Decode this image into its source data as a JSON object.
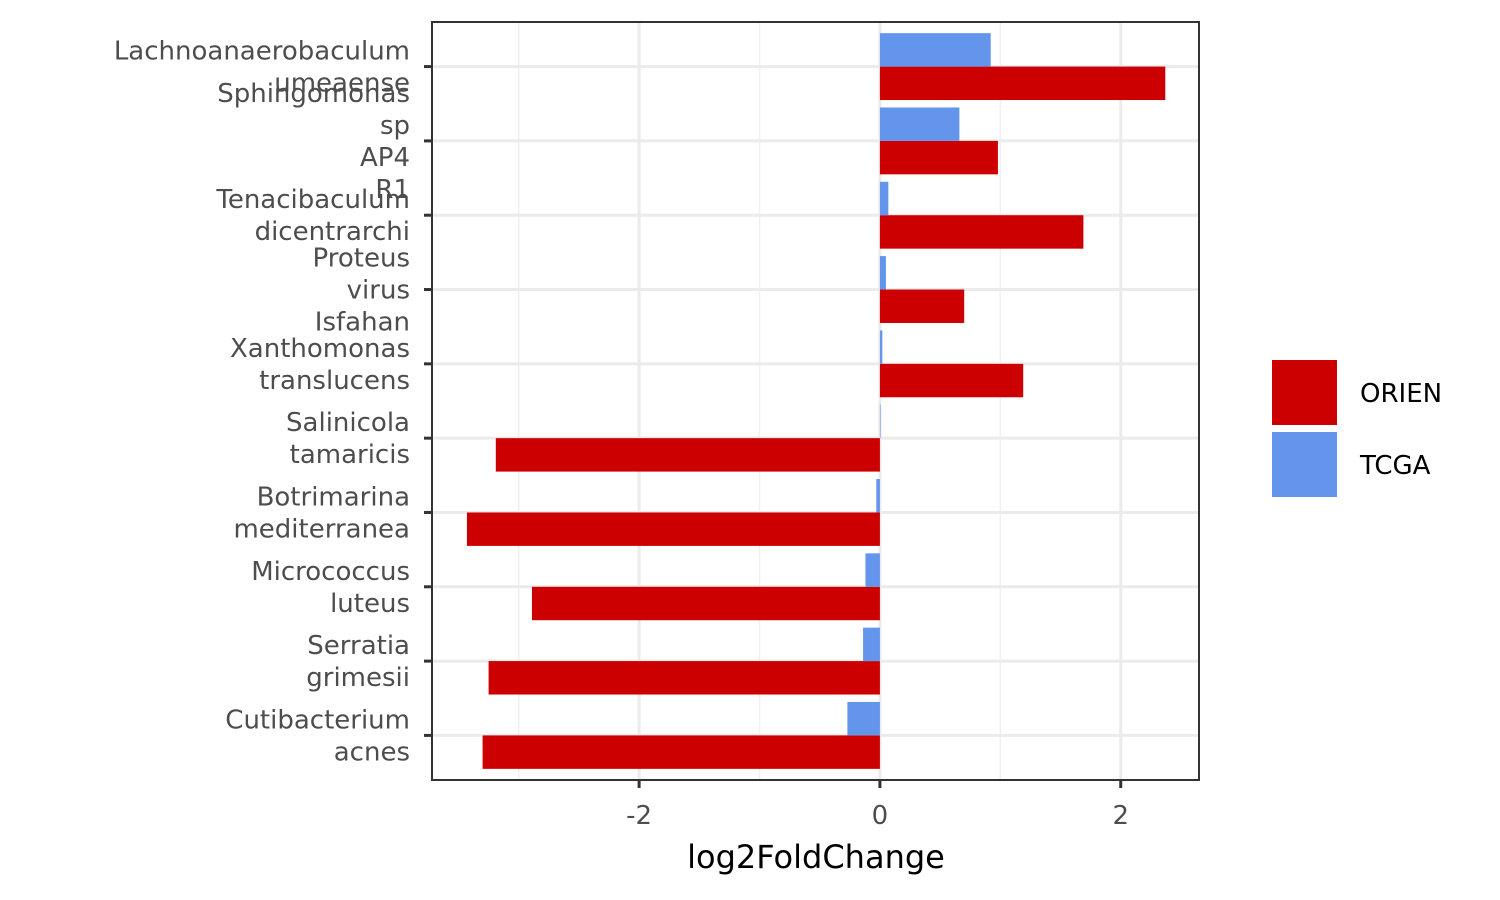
{
  "chart_data": {
    "type": "hbar",
    "categories": [
      "Lachnoanaerobaculum\numeaense",
      "Sphingomonas\nsp\nAP4\nR1",
      "Tenacibaculum\ndicentrarchi",
      "Proteus\nvirus\nIsfahan",
      "Xanthomonas\ntranslucens",
      "Salinicola\ntamaricis",
      "Botrimarina\nmediterranea",
      "Micrococcus\nluteus",
      "Serratia\ngrimesii",
      "Cutibacterium\nacnes"
    ],
    "series": [
      {
        "name": "ORIEN",
        "color": "#cc0000",
        "values": [
          2.37,
          0.98,
          1.69,
          0.7,
          1.19,
          -3.19,
          -3.43,
          -2.89,
          -3.25,
          -3.3
        ]
      },
      {
        "name": "TCGA",
        "color": "#6495ed",
        "values": [
          0.92,
          0.66,
          0.07,
          0.05,
          0.02,
          0.005,
          -0.03,
          -0.12,
          -0.14,
          -0.27
        ]
      }
    ],
    "xlabel": "log2FoldChange",
    "xlim": [
      -3.72,
      2.65
    ],
    "xticks": [
      -2,
      0,
      2
    ],
    "xminorticks": [
      -3,
      -1,
      1
    ],
    "grid": true,
    "legend": "right"
  }
}
